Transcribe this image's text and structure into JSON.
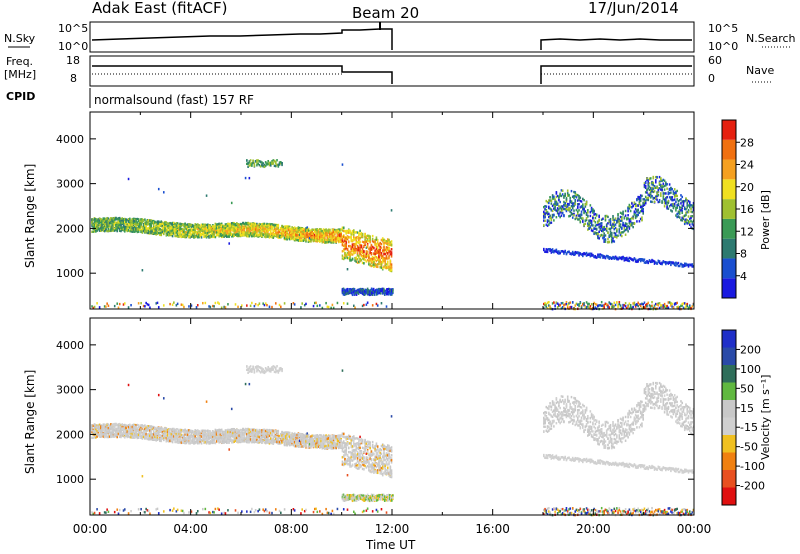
{
  "header": {
    "station": "Adak East (fitACF)",
    "beam": "Beam 20",
    "date": "17/Jun/2014"
  },
  "panels": {
    "nsky_label": "N.Sky",
    "nsky_ticks": [
      "10^5",
      "10^0"
    ],
    "nsearch_label": "N.Search",
    "nsearch_ticks": [
      "10^5",
      "10^0"
    ],
    "freq_label": "Freq.",
    "freq_unit": "[MHz]",
    "freq_ticks": [
      "18",
      "8"
    ],
    "nave_label": "Nave",
    "nave_ticks": [
      "60",
      "0"
    ],
    "cpid_label": "CPID",
    "cpid_text": "normalsound (fast) 157 RF"
  },
  "colors": {
    "power": [
      "#1a1ae0",
      "#1a4fd0",
      "#2d7a70",
      "#3a9a55",
      "#9fc030",
      "#f0e020",
      "#f5a020",
      "#f07010",
      "#e52010"
    ],
    "velocity": [
      "#1f2fc8",
      "#2a4aa8",
      "#2f6e5a",
      "#60b840",
      "#c8c8c8",
      "#d0d0d0",
      "#f0c020",
      "#f08010",
      "#e85020",
      "#e01010"
    ]
  },
  "chart_data": [
    {
      "type": "heatmap",
      "title": "",
      "xlabel": "Time UT",
      "ylabel": "Slant Range [km]",
      "x_ticks": [
        "00:00",
        "04:00",
        "08:00",
        "12:00",
        "16:00",
        "20:00",
        "00:00"
      ],
      "y_ticks": [
        "1000",
        "2000",
        "3000",
        "4000"
      ],
      "ylim": [
        200,
        4600
      ],
      "colorbar_label": "Power [dB]",
      "colorbar_ticks": [
        "28",
        "24",
        "20",
        "16",
        "12",
        "8",
        "4"
      ],
      "colorbar_range": [
        0,
        32
      ]
    },
    {
      "type": "heatmap",
      "title": "",
      "xlabel": "Time UT",
      "ylabel": "Slant Range [km]",
      "x_ticks": [
        "00:00",
        "04:00",
        "08:00",
        "12:00",
        "16:00",
        "20:00",
        "00:00"
      ],
      "y_ticks": [
        "1000",
        "2000",
        "3000",
        "4000"
      ],
      "ylim": [
        200,
        4600
      ],
      "colorbar_label": "Velocity [m s⁻¹]",
      "colorbar_ticks": [
        "200",
        "100",
        "50",
        "15",
        "-15",
        "-50",
        "-100",
        "-200"
      ]
    }
  ],
  "footer": {
    "xlabel": "Time UT"
  }
}
